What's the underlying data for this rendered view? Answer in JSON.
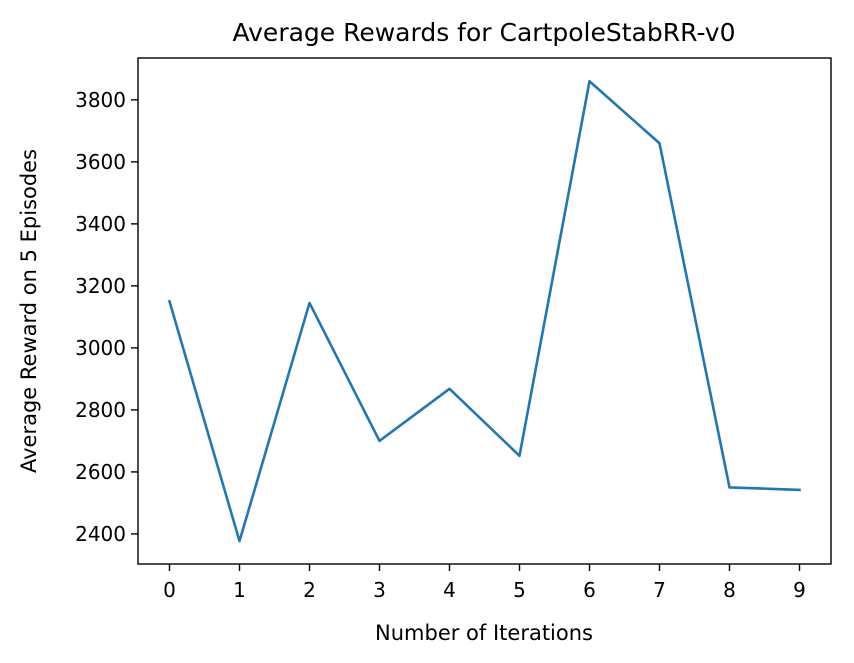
{
  "chart_data": {
    "type": "line",
    "title": "Average Rewards for CartpoleStabRR-v0",
    "xlabel": "Number of Iterations",
    "ylabel": "Average Reward on 5 Episodes",
    "x": [
      0,
      1,
      2,
      3,
      4,
      5,
      6,
      7,
      8,
      9
    ],
    "xticks": [
      "0",
      "1",
      "2",
      "3",
      "4",
      "5",
      "6",
      "7",
      "8",
      "9"
    ],
    "yticks": [
      "2400",
      "2600",
      "2800",
      "3000",
      "3200",
      "3400",
      "3600",
      "3800"
    ],
    "xlim": [
      -0.45,
      9.45
    ],
    "ylim": [
      2303,
      3935
    ],
    "series": [
      {
        "values": [
          3150,
          2377,
          3145,
          2700,
          2868,
          2652,
          3860,
          3660,
          2550,
          2542
        ],
        "color": "#1f77b4"
      }
    ],
    "grid": false,
    "legend": "none"
  }
}
